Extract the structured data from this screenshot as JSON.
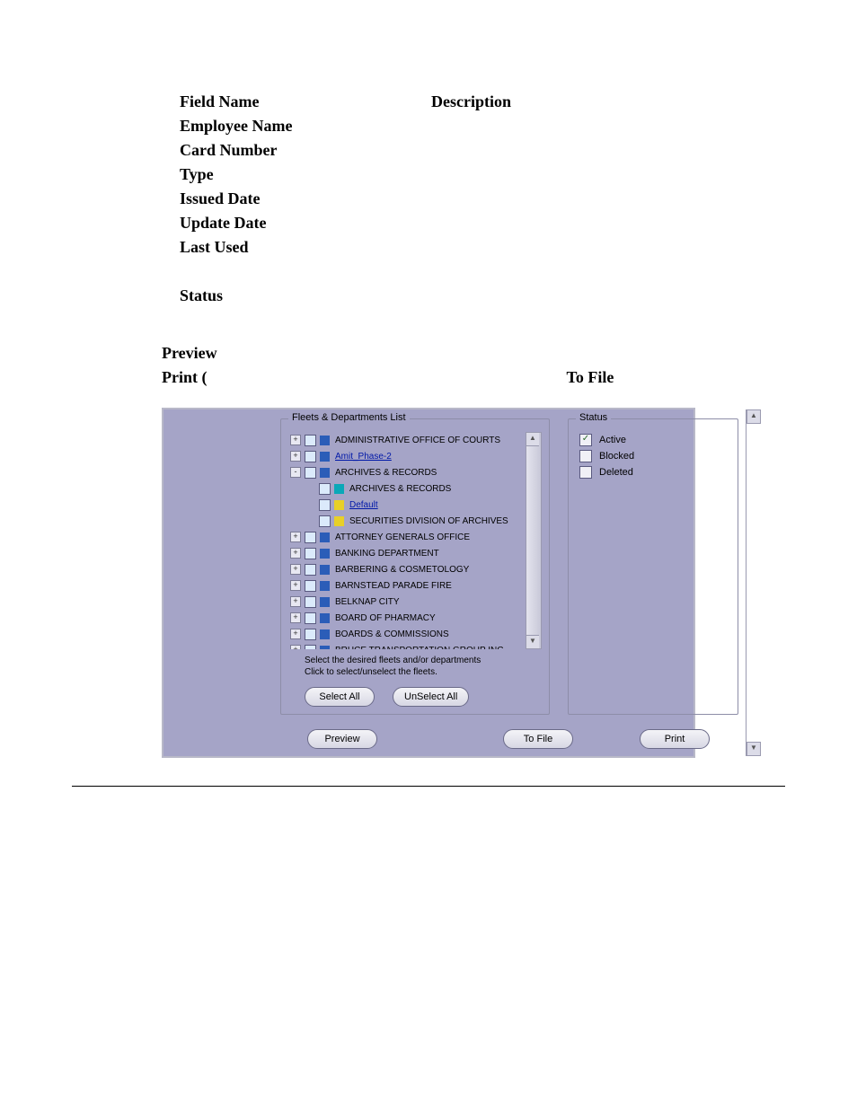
{
  "doc": {
    "fieldHeader": {
      "name": "Field Name",
      "desc": "Description"
    },
    "fields": [
      "Employee Name",
      "Card Number",
      "Type",
      "Issued Date",
      "Update Date",
      "Last Used"
    ],
    "status": "Status",
    "preview": "Preview",
    "print": "Print (",
    "toFile": "To File"
  },
  "ui": {
    "fleetsLegend": "Fleets & Departments List",
    "statusLegend": "Status",
    "hint1": "Select the desired fleets and/or departments",
    "hint2": "Click to select/unselect the fleets.",
    "selectAll": "Select All",
    "unselectAll": "UnSelect All",
    "previewBtn": "Preview",
    "toFileBtn": "To File",
    "printBtn": "Print",
    "tree": [
      {
        "level": 0,
        "exp": "+",
        "color": "blue",
        "label": "ADMINISTRATIVE OFFICE OF COURTS"
      },
      {
        "level": 0,
        "exp": "+",
        "color": "blue",
        "label": "Amit_Phase-2",
        "link": true
      },
      {
        "level": 0,
        "exp": "-",
        "color": "blue",
        "label": "ARCHIVES & RECORDS"
      },
      {
        "level": 1,
        "exp": "",
        "color": "teal",
        "label": "ARCHIVES & RECORDS"
      },
      {
        "level": 1,
        "exp": "",
        "color": "yellow",
        "label": "Default",
        "link": true
      },
      {
        "level": 1,
        "exp": "",
        "color": "yellow",
        "label": "SECURITIES DIVISION OF ARCHIVES"
      },
      {
        "level": 0,
        "exp": "+",
        "color": "blue",
        "label": "ATTORNEY GENERALS OFFICE"
      },
      {
        "level": 0,
        "exp": "+",
        "color": "blue",
        "label": "BANKING DEPARTMENT"
      },
      {
        "level": 0,
        "exp": "+",
        "color": "blue",
        "label": "BARBERING & COSMETOLOGY"
      },
      {
        "level": 0,
        "exp": "+",
        "color": "blue",
        "label": "BARNSTEAD PARADE FIRE"
      },
      {
        "level": 0,
        "exp": "+",
        "color": "blue",
        "label": "BELKNAP CITY"
      },
      {
        "level": 0,
        "exp": "+",
        "color": "blue",
        "label": "BOARD OF PHARMACY"
      },
      {
        "level": 0,
        "exp": "+",
        "color": "blue",
        "label": "BOARDS & COMMISSIONS"
      },
      {
        "level": 0,
        "exp": "+",
        "color": "blue",
        "label": "BRUCE TRANSPORTATION GROUP INC"
      }
    ],
    "statusItems": [
      {
        "label": "Active",
        "checked": true
      },
      {
        "label": "Blocked",
        "checked": false
      },
      {
        "label": "Deleted",
        "checked": false
      }
    ]
  },
  "colors": {
    "panel": "#a5a4c7",
    "blue": "#2b5db8",
    "teal": "#0aa8b8",
    "yellow": "#e8d028"
  }
}
